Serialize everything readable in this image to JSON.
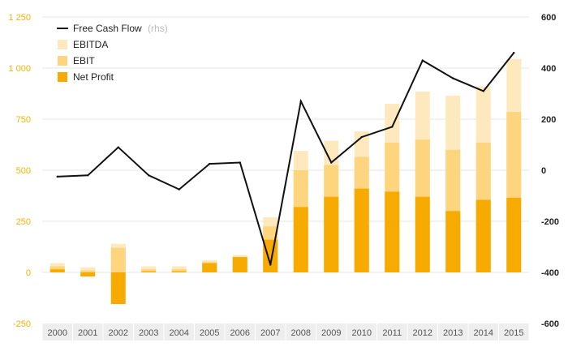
{
  "chart_data": {
    "type": "bar",
    "categories": [
      "2000",
      "2001",
      "2002",
      "2003",
      "2004",
      "2005",
      "2006",
      "2007",
      "2008",
      "2009",
      "2010",
      "2011",
      "2012",
      "2013",
      "2014",
      "2015"
    ],
    "series": [
      {
        "name": "EBITDA",
        "kind": "bar",
        "axis": "left",
        "color": "#fde9bd",
        "values": [
          45,
          25,
          140,
          30,
          30,
          60,
          85,
          270,
          595,
          645,
          690,
          825,
          885,
          865,
          910,
          1045
        ]
      },
      {
        "name": "EBIT",
        "kind": "bar",
        "axis": "left",
        "color": "#fcd57e",
        "values": [
          30,
          10,
          120,
          15,
          15,
          50,
          75,
          225,
          500,
          525,
          565,
          635,
          650,
          600,
          635,
          785
        ]
      },
      {
        "name": "Net Profit",
        "kind": "bar",
        "axis": "left",
        "color": "#f7ab00",
        "values": [
          15,
          -20,
          -155,
          5,
          5,
          45,
          75,
          160,
          320,
          370,
          410,
          395,
          370,
          300,
          355,
          365
        ]
      },
      {
        "name": "Free Cash Flow",
        "kind": "line",
        "axis": "right",
        "color": "#111111",
        "values": [
          -25,
          -20,
          90,
          -20,
          -75,
          25,
          30,
          -370,
          270,
          30,
          130,
          170,
          430,
          360,
          310,
          460
        ]
      }
    ],
    "ylim_left": [
      -250,
      1250
    ],
    "ylim_right": [
      -600,
      600
    ],
    "yticks_left": [
      -250,
      0,
      250,
      500,
      750,
      1000,
      1250
    ],
    "yticks_left_labels": [
      "-250",
      "0",
      "250",
      "500",
      "750",
      "1 000",
      "1 250"
    ],
    "yticks_right": [
      -600,
      -400,
      -200,
      0,
      200,
      400,
      600
    ],
    "grid": "horizontal",
    "legend_position": "top-left",
    "legend": {
      "fcf_label": "Free Cash Flow",
      "fcf_note": "(rhs)",
      "ebitda_label": "EBITDA",
      "ebit_label": "EBIT",
      "net_label": "Net Profit"
    },
    "colors": {
      "left_axis": "#f0b400",
      "right_axis": "#222222",
      "grid": "#e6e6e6",
      "x_axis_band": "#eeeeee"
    }
  }
}
